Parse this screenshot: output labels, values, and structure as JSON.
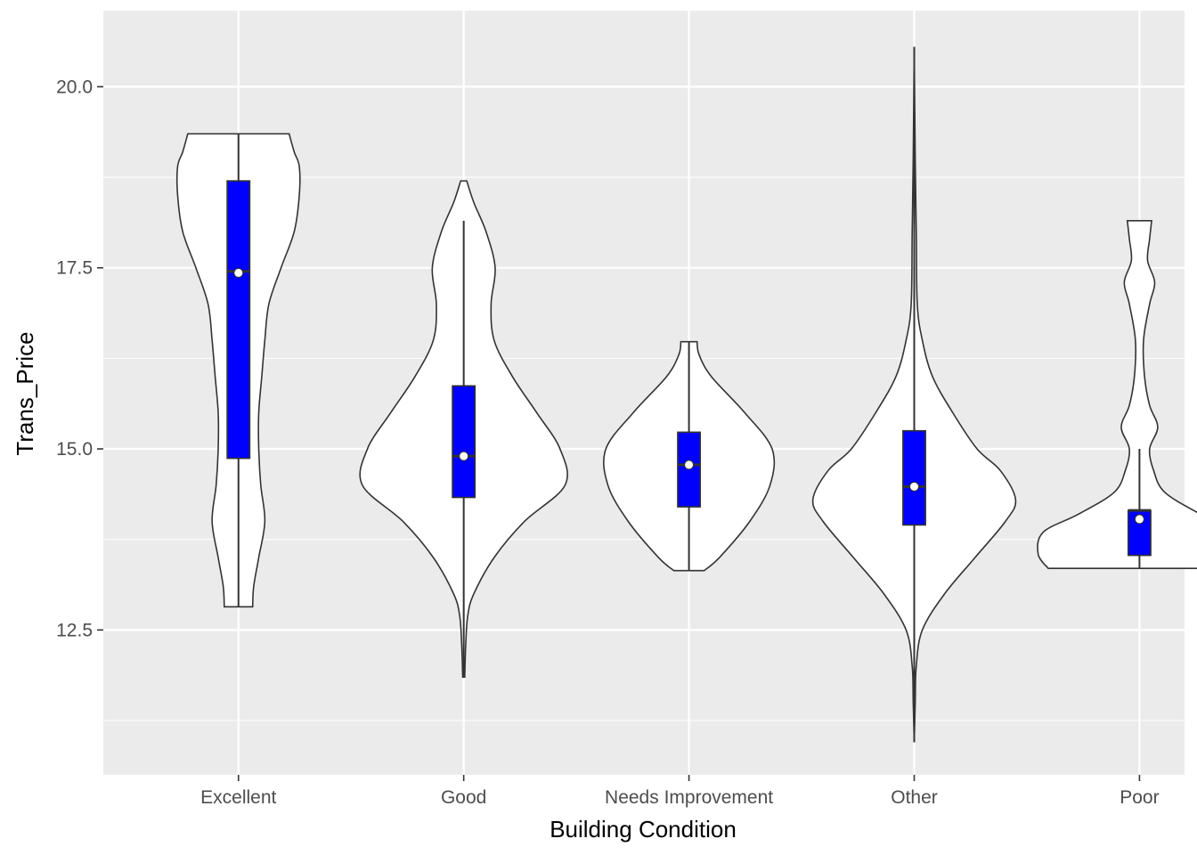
{
  "chart_data": {
    "type": "violin",
    "title": "",
    "xlabel": "Building Condition",
    "ylabel": "Trans_Price",
    "ylim": [
      10.5,
      21.05
    ],
    "yticks": [
      12.5,
      15.0,
      17.5,
      20.0
    ],
    "ytick_labels": [
      "12.5",
      "15.0",
      "17.5",
      "20.0"
    ],
    "categories": [
      "Excellent",
      "Good",
      "Needs Improvement",
      "Other",
      "Poor"
    ],
    "grid": true,
    "legend": "none",
    "colors": {
      "panel_background": "#ebebeb",
      "grid_line": "#ffffff",
      "violin_fill": "#ffffff",
      "violin_outline": "#333333",
      "box_fill": "#0000ff",
      "mean_point": "#ffffff"
    },
    "groups": [
      {
        "category": "Excellent",
        "min": 12.82,
        "max": 19.35,
        "whisker_low": 12.82,
        "whisker_high": 19.35,
        "q1": 14.87,
        "median": 17.45,
        "q3": 18.7,
        "mean": 17.43,
        "density": [
          [
            12.82,
            0.14
          ],
          [
            13.1,
            0.15
          ],
          [
            13.5,
            0.2
          ],
          [
            14.0,
            0.26
          ],
          [
            14.5,
            0.22
          ],
          [
            15.0,
            0.2
          ],
          [
            15.5,
            0.2
          ],
          [
            16.0,
            0.23
          ],
          [
            16.5,
            0.26
          ],
          [
            17.0,
            0.3
          ],
          [
            17.5,
            0.42
          ],
          [
            18.0,
            0.55
          ],
          [
            18.5,
            0.6
          ],
          [
            18.9,
            0.6
          ],
          [
            19.1,
            0.55
          ],
          [
            19.35,
            0.5
          ]
        ]
      },
      {
        "category": "Good",
        "min": 11.85,
        "max": 18.7,
        "whisker_low": 11.85,
        "whisker_high": 18.15,
        "q1": 14.33,
        "median": 14.9,
        "q3": 15.87,
        "mean": 14.9,
        "density": [
          [
            11.85,
            0.01
          ],
          [
            12.3,
            0.02
          ],
          [
            12.7,
            0.04
          ],
          [
            13.0,
            0.1
          ],
          [
            13.5,
            0.3
          ],
          [
            14.0,
            0.6
          ],
          [
            14.5,
            1.0
          ],
          [
            15.0,
            0.95
          ],
          [
            15.5,
            0.72
          ],
          [
            16.0,
            0.48
          ],
          [
            16.5,
            0.3
          ],
          [
            17.0,
            0.27
          ],
          [
            17.5,
            0.31
          ],
          [
            18.0,
            0.22
          ],
          [
            18.4,
            0.1
          ],
          [
            18.7,
            0.03
          ]
        ]
      },
      {
        "category": "Needs Improvement",
        "min": 13.32,
        "max": 16.48,
        "whisker_low": 13.32,
        "whisker_high": 16.48,
        "q1": 14.2,
        "median": 14.78,
        "q3": 15.23,
        "mean": 14.78,
        "density": [
          [
            13.32,
            0.15
          ],
          [
            13.5,
            0.3
          ],
          [
            14.0,
            0.6
          ],
          [
            14.5,
            0.8
          ],
          [
            15.0,
            0.82
          ],
          [
            15.5,
            0.55
          ],
          [
            16.0,
            0.22
          ],
          [
            16.3,
            0.1
          ],
          [
            16.48,
            0.08
          ]
        ]
      },
      {
        "category": "Other",
        "min": 10.95,
        "max": 20.55,
        "whisker_low": 10.95,
        "whisker_high": 20.55,
        "q1": 13.95,
        "median": 14.48,
        "q3": 15.25,
        "mean": 14.48,
        "density": [
          [
            10.95,
            0.0
          ],
          [
            11.5,
            0.01
          ],
          [
            12.0,
            0.02
          ],
          [
            12.5,
            0.08
          ],
          [
            13.0,
            0.3
          ],
          [
            13.5,
            0.6
          ],
          [
            14.0,
            0.9
          ],
          [
            14.3,
            1.0
          ],
          [
            14.7,
            0.85
          ],
          [
            15.0,
            0.62
          ],
          [
            15.5,
            0.38
          ],
          [
            16.0,
            0.18
          ],
          [
            16.5,
            0.08
          ],
          [
            17.0,
            0.03
          ],
          [
            18.0,
            0.02
          ],
          [
            19.0,
            0.01
          ],
          [
            20.55,
            0.0
          ]
        ]
      },
      {
        "category": "Poor",
        "min": 13.35,
        "max": 18.15,
        "whisker_low": 13.35,
        "whisker_high": 15.0,
        "q1": 13.53,
        "median": 14.15,
        "q3": 14.15,
        "mean": 14.03,
        "density": [
          [
            13.35,
            0.9
          ],
          [
            13.55,
            1.0
          ],
          [
            13.85,
            0.95
          ],
          [
            14.1,
            0.6
          ],
          [
            14.4,
            0.25
          ],
          [
            14.7,
            0.14
          ],
          [
            15.0,
            0.1
          ],
          [
            15.3,
            0.18
          ],
          [
            15.6,
            0.1
          ],
          [
            16.0,
            0.05
          ],
          [
            16.5,
            0.04
          ],
          [
            17.0,
            0.1
          ],
          [
            17.3,
            0.15
          ],
          [
            17.6,
            0.08
          ],
          [
            17.9,
            0.1
          ],
          [
            18.15,
            0.12
          ]
        ]
      }
    ]
  }
}
